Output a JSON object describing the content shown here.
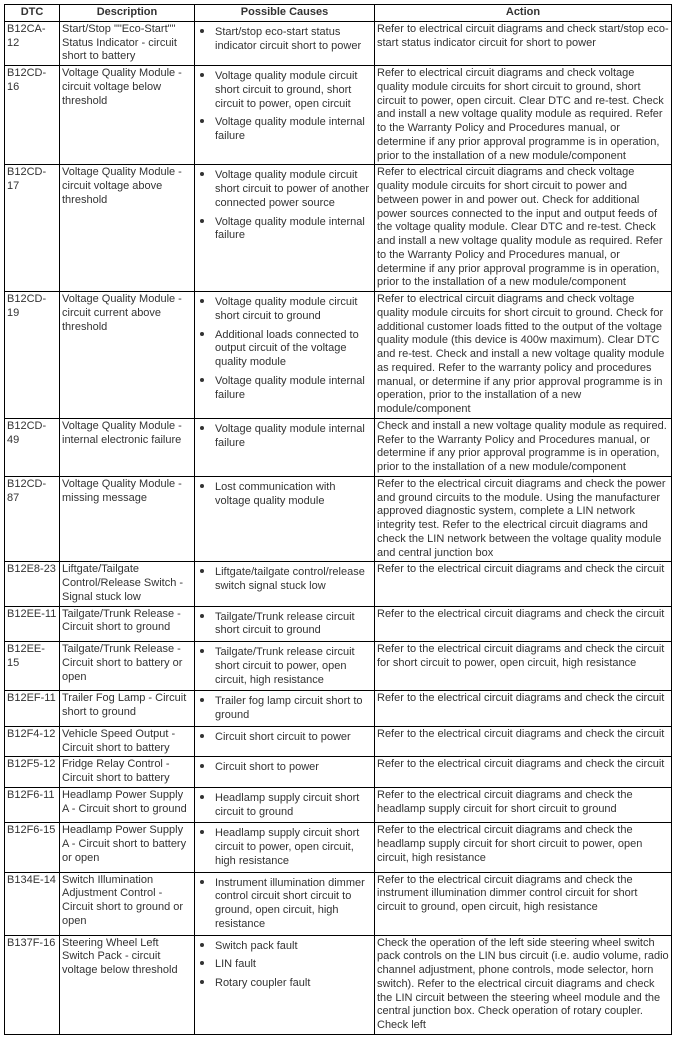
{
  "headers": {
    "dtc": "DTC",
    "description": "Description",
    "causes": "Possible Causes",
    "action": "Action"
  },
  "rows": [
    {
      "dtc": "B12CA-12",
      "description": "Start/Stop \"\"Eco-Start\"\" Status Indicator - circuit short to battery",
      "causes": [
        "Start/stop eco-start status indicator circuit short to power"
      ],
      "action": "Refer to electrical circuit diagrams and check start/stop eco-start status indicator circuit for short to power"
    },
    {
      "dtc": "B12CD-16",
      "description": "Voltage Quality Module - circuit voltage below threshold",
      "causes": [
        "Voltage quality module circuit short circuit to ground, short circuit to power, open circuit",
        "Voltage quality module internal failure"
      ],
      "action": "Refer to electrical circuit diagrams and check voltage quality module circuits for short circuit to ground, short circuit to power, open circuit. Clear DTC and re-test. Check and install a new voltage quality module as required. Refer to the Warranty Policy and Procedures manual, or determine if any prior approval programme is in operation, prior to the installation of a new module/component"
    },
    {
      "dtc": "B12CD-17",
      "description": "Voltage Quality Module - circuit voltage above threshold",
      "causes": [
        "Voltage quality module circuit short circuit to power of another connected power source",
        "Voltage quality module internal failure"
      ],
      "action": "Refer to electrical circuit diagrams and check voltage quality module circuits for short circuit to power and between power in and power out. Check for additional power sources connected to the input and output feeds of the voltage quality module. Clear DTC and re-test. Check and install a new voltage quality module as required. Refer to the Warranty Policy and Procedures manual, or determine if any prior approval programme is in operation, prior to the installation of a new module/component"
    },
    {
      "dtc": "B12CD-19",
      "description": "Voltage Quality Module - circuit current above threshold",
      "causes": [
        "Voltage quality module circuit short circuit to ground",
        "Additional loads connected to output circuit of the voltage quality module",
        "Voltage quality module internal failure"
      ],
      "action": "Refer to electrical circuit diagrams and check voltage quality module circuits for short circuit to ground. Check for additional customer loads fitted to the output of the voltage quality module (this device is 400w maximum). Clear DTC and re-test. Check and install a new voltage quality module as required. Refer to the warranty policy and procedures manual, or determine if any prior approval programme is in operation, prior to the installation of a new module/component"
    },
    {
      "dtc": "B12CD-49",
      "description": "Voltage Quality Module - internal electronic failure",
      "causes": [
        "Voltage quality module internal failure"
      ],
      "action": "Check and install a new voltage quality module as required. Refer to the Warranty Policy and Procedures manual, or determine if any prior approval programme is in operation, prior to the installation of a new module/component"
    },
    {
      "dtc": "B12CD-87",
      "description": "Voltage Quality Module - missing message",
      "causes": [
        "Lost communication with voltage quality module"
      ],
      "action": "Refer to the electrical circuit diagrams and check the power and ground circuits to the module. Using the manufacturer approved diagnostic system, complete a LIN network integrity test. Refer to the electrical circuit diagrams and check the LIN network between the voltage quality module and central junction box"
    },
    {
      "dtc": "B12E8-23",
      "description": "Liftgate/Tailgate Control/Release Switch - Signal stuck low",
      "causes": [
        "Liftgate/tailgate control/release switch signal stuck low"
      ],
      "action": "Refer to the electrical circuit diagrams and check the circuit"
    },
    {
      "dtc": "B12EE-11",
      "description": "Tailgate/Trunk Release - Circuit short to ground",
      "causes": [
        "Tailgate/Trunk release circuit short circuit to ground"
      ],
      "action": "Refer to the electrical circuit diagrams and check the circuit"
    },
    {
      "dtc": "B12EE-15",
      "description": "Tailgate/Trunk Release - Circuit short to battery or open",
      "causes": [
        "Tailgate/Trunk release circuit short circuit to power, open circuit, high resistance"
      ],
      "action": "Refer to the electrical circuit diagrams and check the circuit for short circuit to power, open circuit, high resistance"
    },
    {
      "dtc": "B12EF-11",
      "description": "Trailer Fog Lamp - Circuit short to ground",
      "causes": [
        "Trailer fog lamp circuit short to ground"
      ],
      "action": "Refer to the electrical circuit diagrams and check the circuit"
    },
    {
      "dtc": "B12F4-12",
      "description": "Vehicle Speed Output - Circuit short to battery",
      "causes": [
        "Circuit short circuit to power"
      ],
      "action": "Refer to the electrical circuit diagrams and check the circuit"
    },
    {
      "dtc": "B12F5-12",
      "description": "Fridge Relay Control - Circuit short to battery",
      "causes": [
        "Circuit short to power"
      ],
      "action": "Refer to the electrical circuit diagrams and check the circuit"
    },
    {
      "dtc": "B12F6-11",
      "description": "Headlamp Power Supply A - Circuit short to ground",
      "causes": [
        "Headlamp supply circuit short circuit to ground"
      ],
      "action": "Refer to the electrical circuit diagrams and check the headlamp supply circuit for short circuit to ground"
    },
    {
      "dtc": "B12F6-15",
      "description": "Headlamp Power Supply A - Circuit short to battery or open",
      "causes": [
        "Headlamp supply circuit short circuit to power, open circuit, high resistance"
      ],
      "action": "Refer to the electrical circuit diagrams and check the headlamp supply circuit for short circuit to power, open circuit, high resistance"
    },
    {
      "dtc": "B134E-14",
      "description": "Switch Illumination Adjustment Control - Circuit short to ground or open",
      "causes": [
        "Instrument illumination dimmer control circuit short circuit to ground, open circuit, high resistance"
      ],
      "action": "Refer to the electrical circuit diagrams and check the instrument illumination dimmer control circuit for short circuit to ground, open circuit, high resistance"
    },
    {
      "dtc": "B137F-16",
      "description": "Steering Wheel Left Switch Pack - circuit voltage below threshold",
      "causes": [
        "Switch pack fault",
        "LIN fault",
        "Rotary coupler fault"
      ],
      "action": "Check the operation of the left side steering wheel switch pack controls on the LIN bus circuit (i.e. audio volume, radio channel adjustment, phone controls, mode selector, horn switch). Refer to the electrical circuit diagrams and check the LIN circuit between the steering wheel module and the central junction box. Check operation of rotary coupler. Check left"
    }
  ]
}
